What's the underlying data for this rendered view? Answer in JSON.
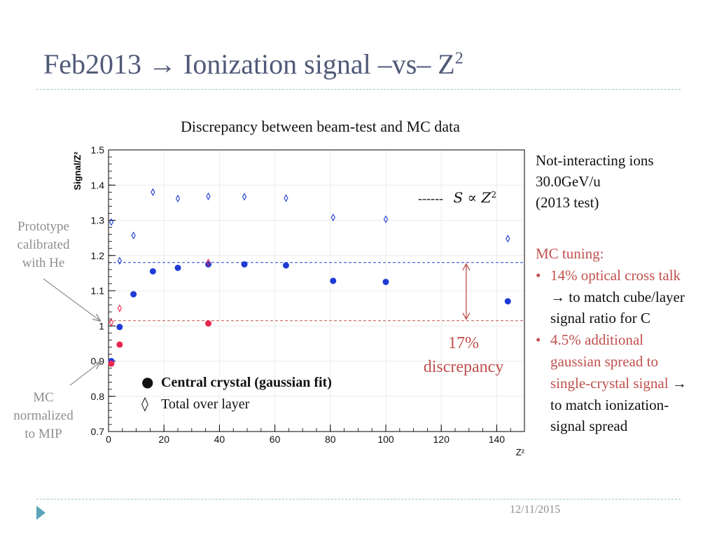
{
  "slide": {
    "title": "Feb2013 → Ionization signal –vs– Z",
    "title_sup": "2",
    "date": "12/11/2015",
    "ions": [
      "Not-interacting ions",
      "30.0GeV/u",
      "(2013 test)"
    ],
    "proportional_label": "------",
    "proportional_formula": "S ∝ Z",
    "proportional_sup": "2",
    "mc_tuning": {
      "heading": "MC tuning:",
      "bullet": "•",
      "item1_red": "14% optical cross talk",
      "item1_rest": " → to match cube/layer signal ratio for C",
      "item2_red": "4.5% additional gaussian spread to single-crystal signal",
      "item2_rest": " → to match ionization-signal spread"
    },
    "prototype_note": [
      "Prototype",
      "calibrated",
      "with He"
    ],
    "mc_note": [
      "MC",
      "normalized",
      "to MIP"
    ],
    "discrepancy_pct": "17%",
    "discrepancy_word": "discrepancy",
    "legend_central_marker": "●",
    "legend_central": "Central crystal (gaussian fit)",
    "legend_total_marker": "◊",
    "legend_total": "Total over layer"
  },
  "colors": {
    "title": "#505a78",
    "red": "#c0504d",
    "blue": "#1f3bd6",
    "red_points": "#e8274f",
    "grey": "#8f8f8f"
  },
  "chart_data": {
    "type": "scatter",
    "title": "Discrepancy between beam-test and MC data",
    "xlabel": "Z²",
    "ylabel": "Signal/Z²",
    "xlim": [
      0,
      150
    ],
    "ylim": [
      0.7,
      1.5
    ],
    "xticks": [
      0,
      20,
      40,
      60,
      80,
      100,
      120,
      140
    ],
    "yticks": [
      0.7,
      0.8,
      0.9,
      1.0,
      1.1,
      1.2,
      1.3,
      1.4,
      1.5
    ],
    "reference_lines": [
      {
        "name": "MC tuning level",
        "y": 1.18,
        "color": "#1f3bd6"
      },
      {
        "name": "He calibration level",
        "y": 1.015,
        "color": "#c0504d"
      }
    ],
    "series": [
      {
        "name": "Central crystal (gaussian fit) - data",
        "marker": "filled-circle",
        "color": "#1f3bd6",
        "x": [
          1,
          4,
          9,
          16,
          25,
          36,
          49,
          64,
          81,
          100,
          144
        ],
        "y": [
          0.9,
          0.997,
          1.09,
          1.155,
          1.165,
          1.175,
          1.175,
          1.172,
          1.128,
          1.125,
          1.07
        ]
      },
      {
        "name": "Total over layer - data",
        "marker": "open-diamond",
        "color": "#1f3bd6",
        "x": [
          1,
          4,
          9,
          16,
          25,
          36,
          49,
          64,
          81,
          100,
          144
        ],
        "y": [
          1.295,
          1.185,
          1.257,
          1.38,
          1.362,
          1.368,
          1.367,
          1.363,
          1.308,
          1.303,
          1.248
        ]
      },
      {
        "name": "Central crystal (gaussian fit) - MC",
        "marker": "filled-circle",
        "color": "#e8274f",
        "x": [
          1,
          4,
          36
        ],
        "y": [
          0.893,
          0.947,
          1.007
        ]
      },
      {
        "name": "Total over layer - MC",
        "marker": "open-diamond",
        "color": "#e8274f",
        "x": [
          1,
          4,
          36
        ],
        "y": [
          1.01,
          1.05,
          1.18
        ]
      }
    ]
  }
}
